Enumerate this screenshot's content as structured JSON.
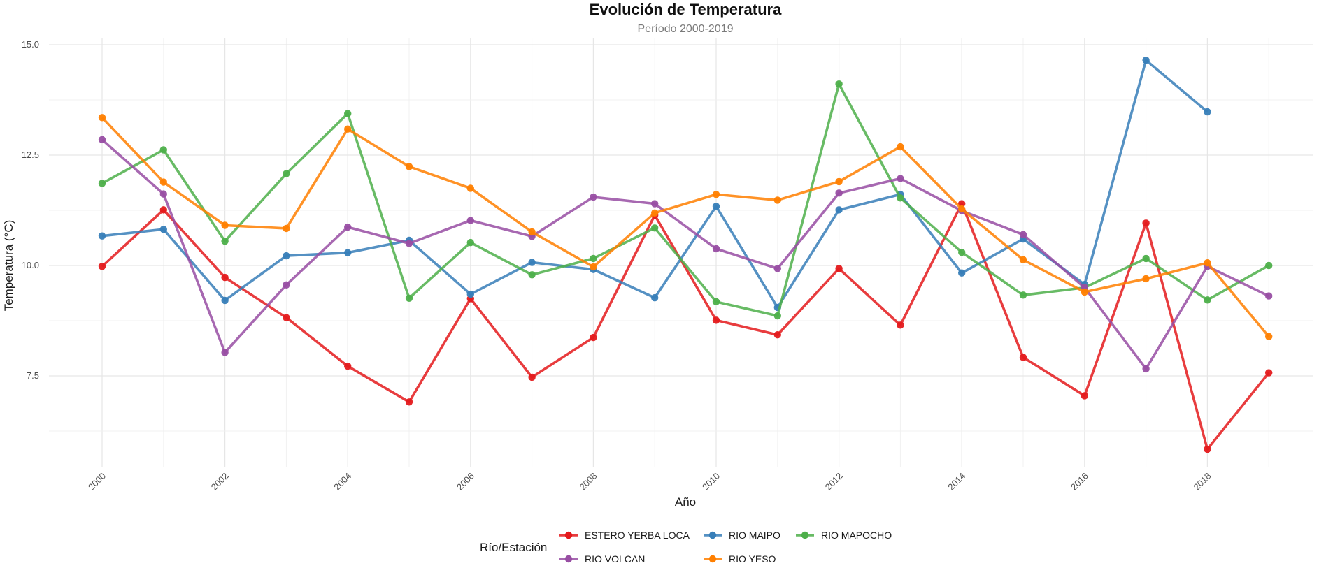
{
  "chart_data": {
    "type": "line",
    "title": "Evolución de Temperatura",
    "subtitle": "Período 2000-2019",
    "xlabel": "Año",
    "ylabel": "Temperatura (°C)",
    "x": [
      2000,
      2001,
      2002,
      2003,
      2004,
      2005,
      2006,
      2007,
      2008,
      2009,
      2010,
      2011,
      2012,
      2013,
      2014,
      2015,
      2016,
      2017,
      2018,
      2019
    ],
    "xlim": [
      1999.2,
      2019.8
    ],
    "ylim": [
      5.5,
      15.1
    ],
    "x_ticks": [
      2000,
      2002,
      2004,
      2006,
      2008,
      2010,
      2012,
      2014,
      2016,
      2018
    ],
    "y_ticks": [
      7.5,
      10.0,
      12.5,
      15.0
    ],
    "y_tick_labels": [
      "7.5",
      "10.0",
      "12.5",
      "15.0"
    ],
    "grid": true,
    "legend_title": "Río/Estación",
    "legend_position": "bottom",
    "series": [
      {
        "name": "ESTERO YERBA LOCA",
        "color": "#e41a1c",
        "values": [
          9.98,
          11.26,
          9.73,
          8.82,
          7.72,
          6.91,
          9.25,
          7.47,
          8.37,
          11.14,
          8.76,
          8.43,
          9.93,
          8.65,
          11.4,
          7.92,
          7.05,
          10.96,
          5.84,
          7.57
        ]
      },
      {
        "name": "RIO MAIPO",
        "color": "#377eb8",
        "values": [
          10.67,
          10.82,
          9.21,
          10.22,
          10.29,
          10.57,
          9.35,
          10.07,
          9.91,
          9.27,
          11.34,
          9.05,
          11.26,
          11.61,
          9.83,
          10.6,
          9.57,
          14.65,
          13.48,
          null
        ]
      },
      {
        "name": "RIO MAPOCHO",
        "color": "#4daf4a",
        "values": [
          11.86,
          12.62,
          10.55,
          12.08,
          13.44,
          9.26,
          10.52,
          9.79,
          10.16,
          10.85,
          9.18,
          8.86,
          14.11,
          11.53,
          10.3,
          9.33,
          9.5,
          10.16,
          9.22,
          10.0
        ]
      },
      {
        "name": "RIO VOLCAN",
        "color": "#984ea3",
        "values": [
          12.85,
          11.62,
          8.03,
          9.56,
          10.87,
          10.5,
          11.02,
          10.66,
          11.55,
          11.4,
          10.38,
          9.93,
          11.64,
          11.97,
          11.24,
          10.7,
          9.5,
          7.66,
          9.98,
          9.31
        ]
      },
      {
        "name": "RIO YESO",
        "color": "#ff7f00",
        "values": [
          13.35,
          11.89,
          10.91,
          10.84,
          13.09,
          12.24,
          11.75,
          10.76,
          9.97,
          11.19,
          11.61,
          11.48,
          11.9,
          12.69,
          11.28,
          10.13,
          9.4,
          9.7,
          10.06,
          8.39
        ]
      }
    ]
  }
}
